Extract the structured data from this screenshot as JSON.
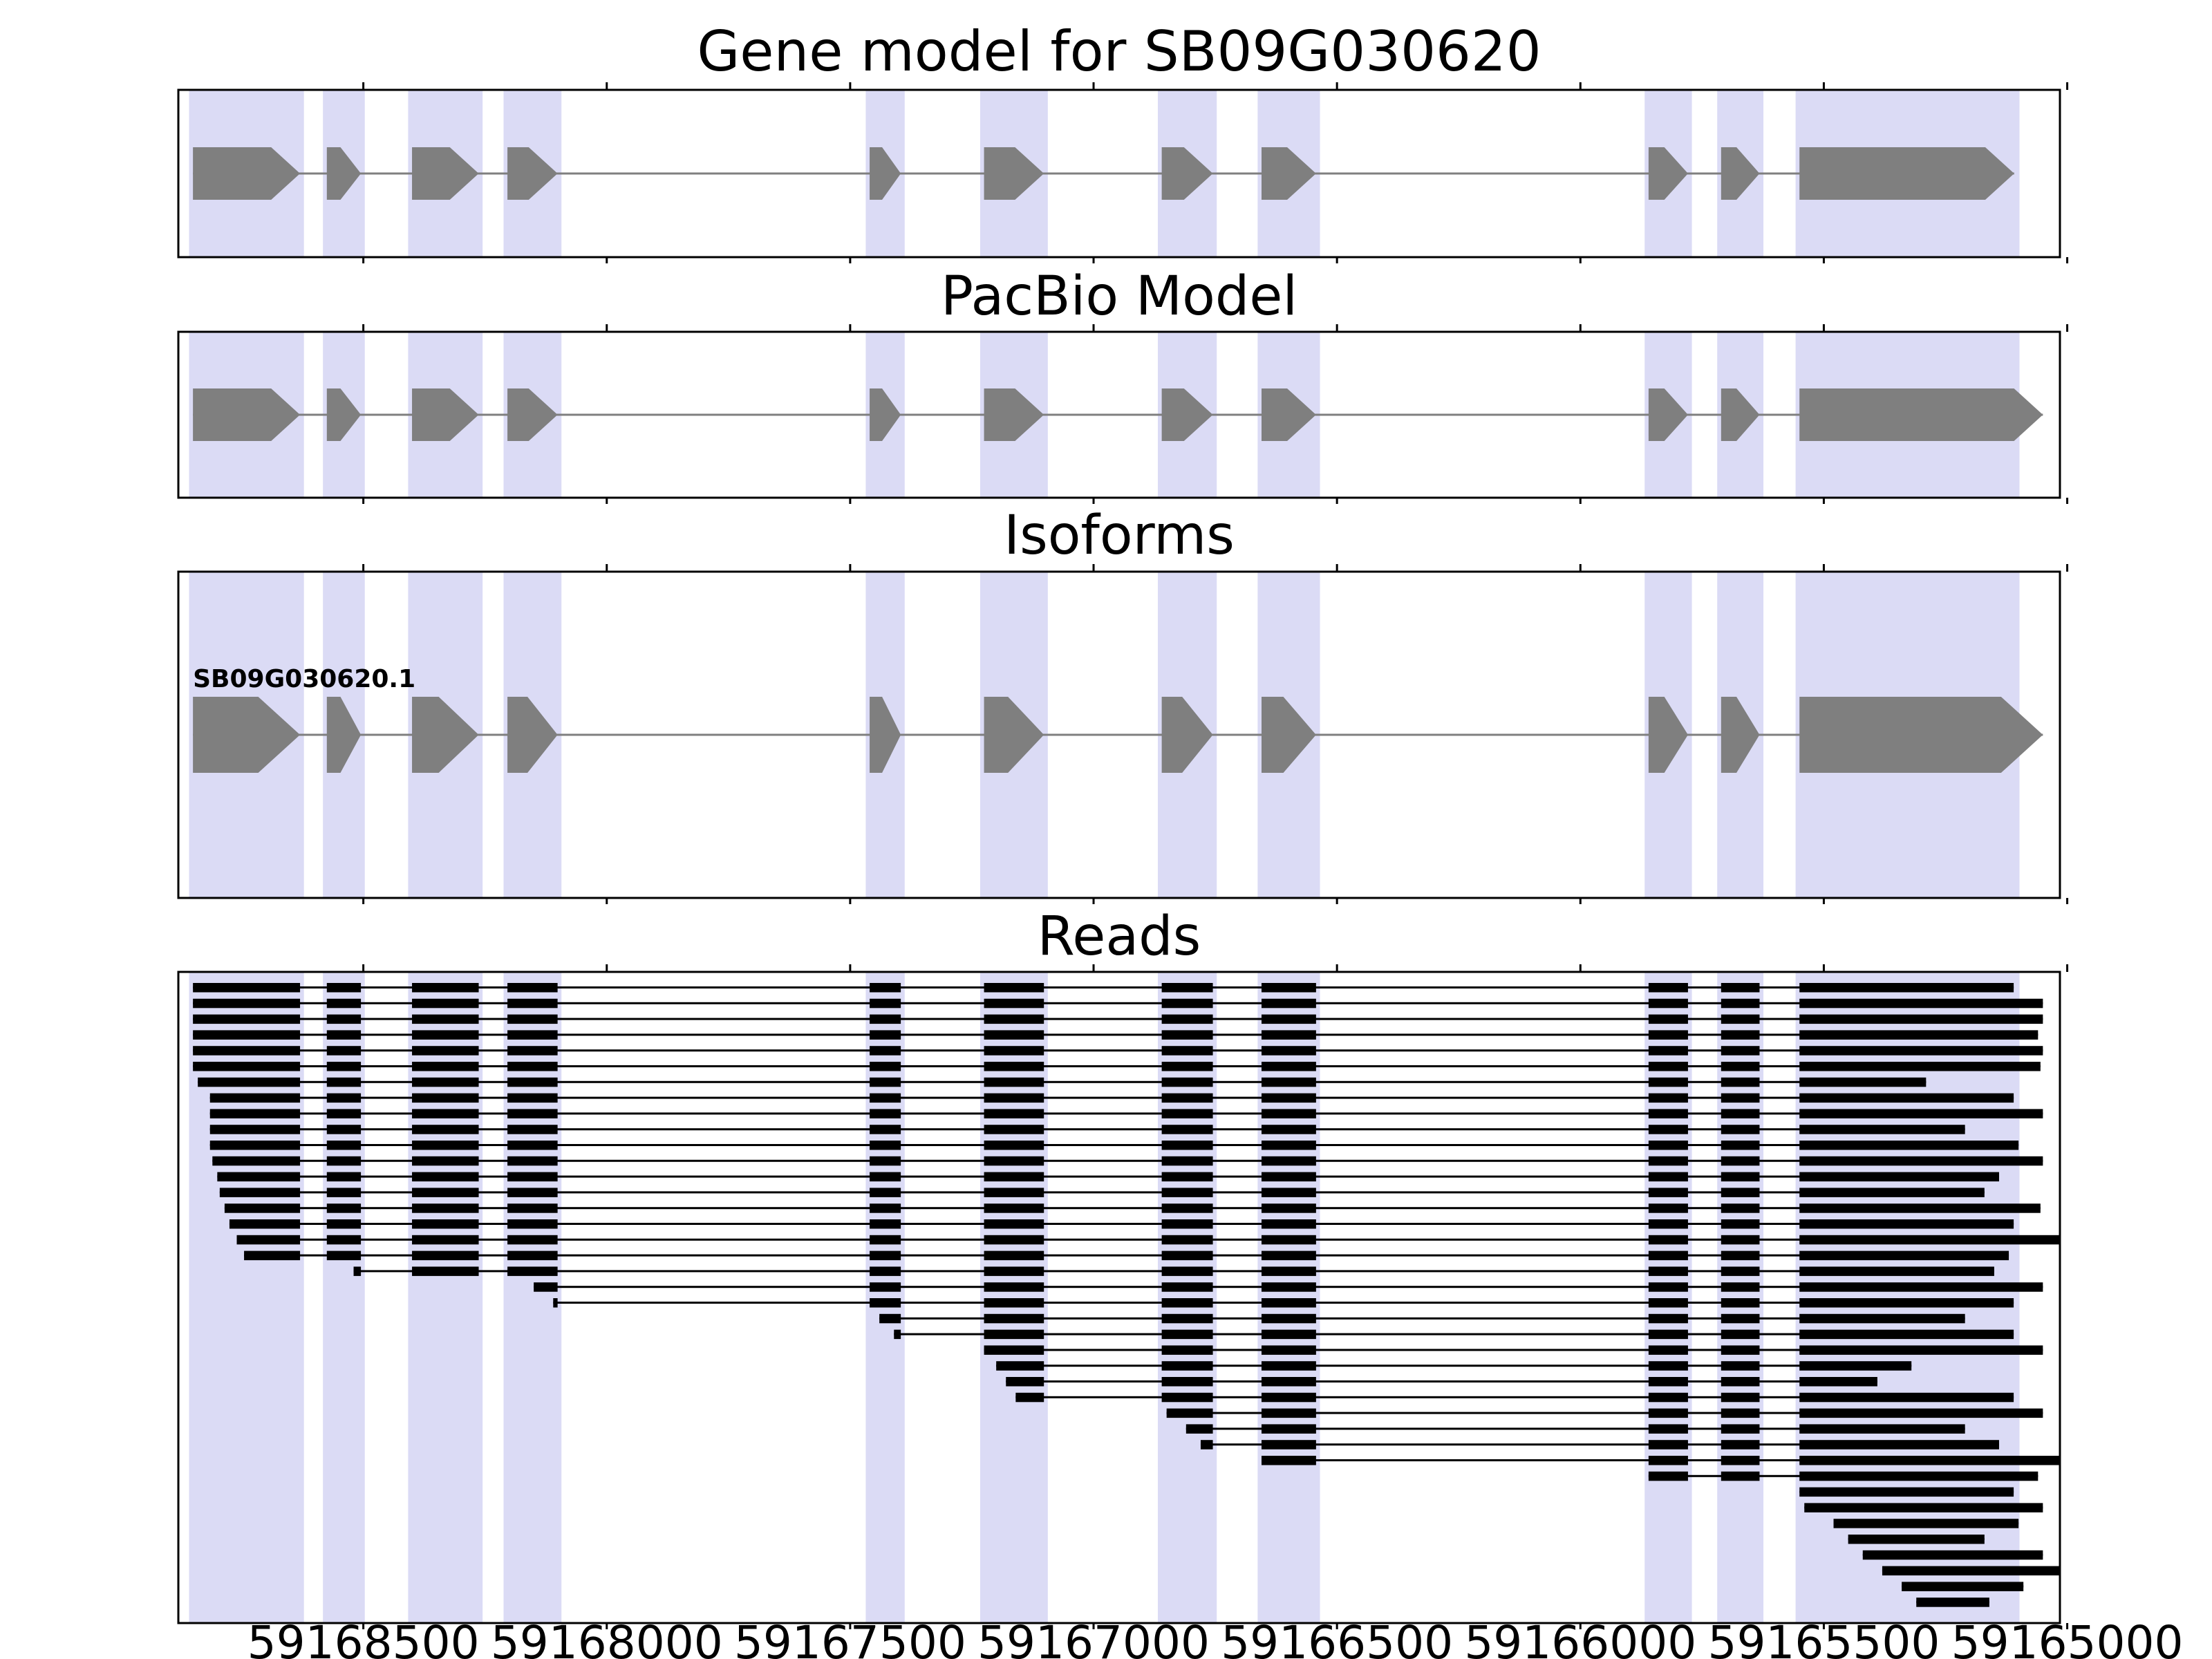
{
  "titles": {
    "gene_model": "Gene model for SB09G030620",
    "pacbio": "PacBio Model",
    "isoforms": "Isoforms",
    "reads": "Reads"
  },
  "colors": {
    "exon": "#7f7f7f",
    "intron_line": "#7f7f7f",
    "read": "#000000",
    "highlight": "#dbdbf5",
    "axis": "#000000",
    "background": "#ffffff"
  },
  "chart_data": {
    "type": "gene-model-browser",
    "gene_id": "SB09G030620",
    "x_axis": {
      "left_value": 59168880,
      "right_value": 59165015,
      "reversed": true,
      "tick_values": [
        59168500,
        59168000,
        59167500,
        59167000,
        59166500,
        59166000,
        59165500,
        59165000
      ],
      "tick_labels": [
        "59168500",
        "59168000",
        "59167500",
        "59167000",
        "59166500",
        "59166000",
        "59165500",
        "59165000"
      ]
    },
    "highlight_regions": [
      [
        59168858,
        59168622
      ],
      [
        59168583,
        59168497
      ],
      [
        59168408,
        59168255
      ],
      [
        59168212,
        59168093
      ],
      [
        59167468,
        59167388
      ],
      [
        59167233,
        59167094
      ],
      [
        59166868,
        59166747
      ],
      [
        59166663,
        59166535
      ],
      [
        59165868,
        59165771
      ],
      [
        59165719,
        59165624
      ],
      [
        59165558,
        59165098
      ]
    ],
    "gene_model": {
      "name": "SB09G030620",
      "exons": [
        [
          59168850,
          59168630
        ],
        [
          59168575,
          59168505
        ],
        [
          59168400,
          59168263
        ],
        [
          59168204,
          59168101
        ],
        [
          59167460,
          59167396
        ],
        [
          59167225,
          59167102
        ],
        [
          59166860,
          59166755
        ],
        [
          59166655,
          59166543
        ],
        [
          59165860,
          59165779
        ],
        [
          59165711,
          59165632
        ],
        [
          59165550,
          59165109
        ]
      ]
    },
    "pacbio_model": {
      "name": "PacBio Model",
      "exons": [
        [
          59168850,
          59168630
        ],
        [
          59168575,
          59168505
        ],
        [
          59168400,
          59168263
        ],
        [
          59168204,
          59168101
        ],
        [
          59167460,
          59167396
        ],
        [
          59167225,
          59167102
        ],
        [
          59166860,
          59166755
        ],
        [
          59166655,
          59166543
        ],
        [
          59165860,
          59165779
        ],
        [
          59165711,
          59165632
        ],
        [
          59165550,
          59165050
        ]
      ]
    },
    "isoforms": [
      {
        "name": "SB09G030620.1",
        "exons": [
          [
            59168850,
            59168630
          ],
          [
            59168575,
            59168505
          ],
          [
            59168400,
            59168263
          ],
          [
            59168204,
            59168101
          ],
          [
            59167460,
            59167396
          ],
          [
            59167225,
            59167102
          ],
          [
            59166860,
            59166755
          ],
          [
            59166655,
            59166543
          ],
          [
            59165860,
            59165779
          ],
          [
            59165711,
            59165632
          ],
          [
            59165550,
            59165050
          ]
        ]
      }
    ],
    "reads": [
      [
        59168850,
        59165110
      ],
      [
        59168850,
        59165050
      ],
      [
        59168850,
        59165050
      ],
      [
        59168850,
        59165060
      ],
      [
        59168850,
        59165050
      ],
      [
        59168850,
        59165055
      ],
      [
        59168840,
        59165290
      ],
      [
        59168815,
        59165110
      ],
      [
        59168815,
        59165050
      ],
      [
        59168815,
        59165210
      ],
      [
        59168815,
        59165100
      ],
      [
        59168810,
        59165050
      ],
      [
        59168800,
        59165140
      ],
      [
        59168795,
        59165170
      ],
      [
        59168785,
        59165055
      ],
      [
        59168775,
        59165110
      ],
      [
        59168760,
        59165015
      ],
      [
        59168745,
        59165120
      ],
      [
        59168520,
        59165150
      ],
      [
        59168150,
        59165050
      ],
      [
        59168110,
        59165110
      ],
      [
        59167440,
        59165210
      ],
      [
        59167410,
        59165110
      ],
      [
        59167225,
        59165050
      ],
      [
        59167200,
        59165320
      ],
      [
        59167180,
        59165390
      ],
      [
        59167160,
        59165110
      ],
      [
        59166850,
        59165050
      ],
      [
        59166810,
        59165210
      ],
      [
        59166780,
        59165140
      ],
      [
        59166655,
        59165015
      ],
      [
        59165860,
        59165060
      ],
      [
        59165550,
        59165110
      ],
      [
        59165540,
        59165050
      ],
      [
        59165480,
        59165100
      ],
      [
        59165450,
        59165170
      ],
      [
        59165420,
        59165050
      ],
      [
        59165380,
        59165015
      ],
      [
        59165340,
        59165090
      ],
      [
        59165310,
        59165160
      ]
    ]
  }
}
